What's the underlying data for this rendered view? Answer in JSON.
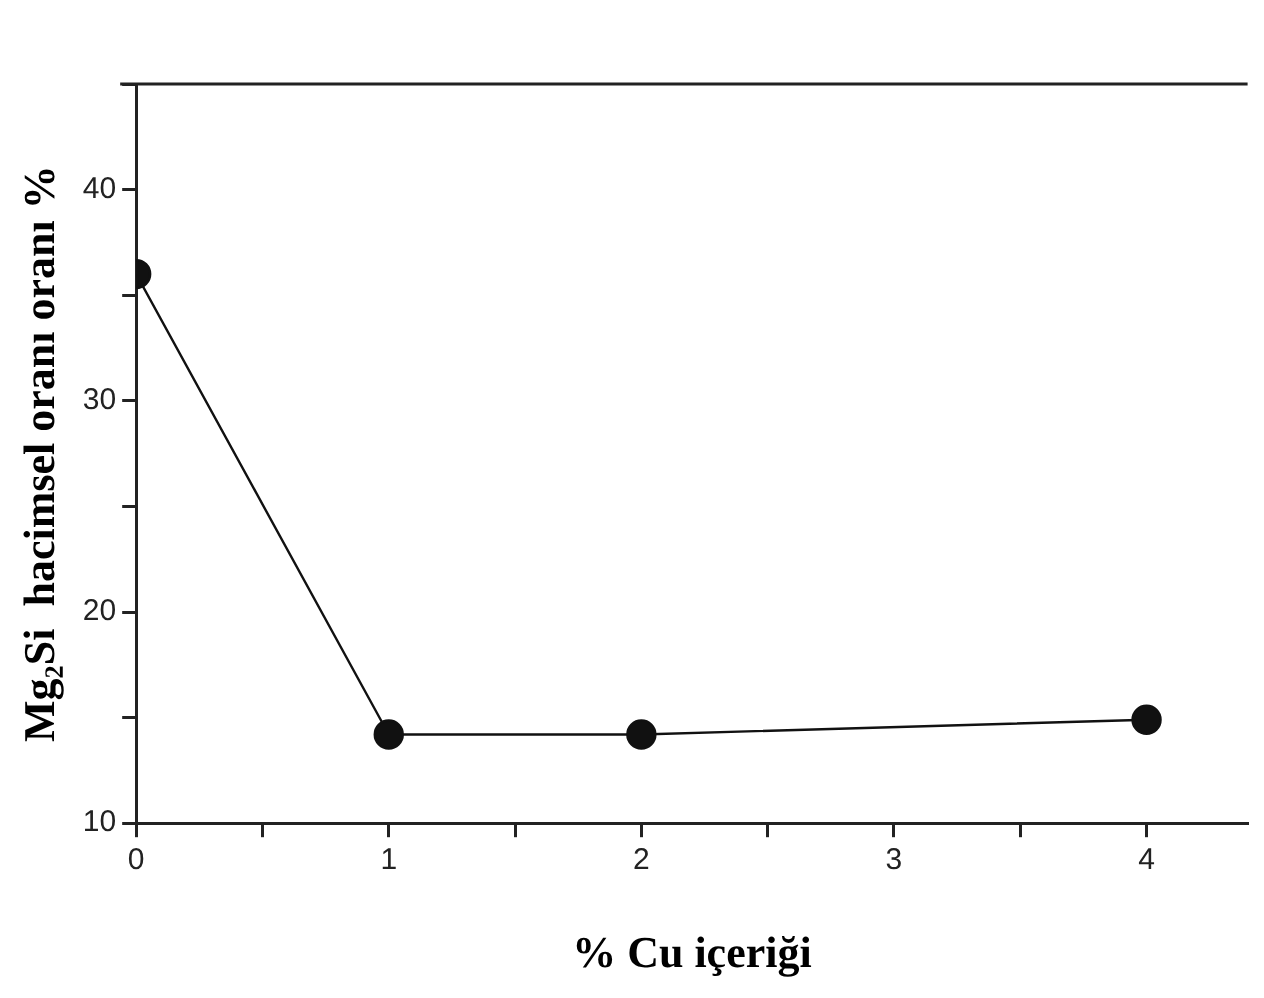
{
  "chart_data": {
    "type": "line",
    "xlabel": "% Cu içeriği",
    "ylabel": "Mg₂Si  hacimsel oranı oranı %",
    "x": [
      0,
      1,
      2,
      4
    ],
    "series": [
      {
        "color": "#111111",
        "values": [
          36,
          14.2,
          14.2,
          14.9
        ]
      }
    ],
    "marker": "circle",
    "line_style": "solid",
    "grid": false,
    "legend": false,
    "xlim": [
      0,
      4.4
    ],
    "xticks": [
      0,
      {
        "value": 0.5,
        "label": null
      },
      1,
      {
        "value": 1.5,
        "label": null
      },
      2,
      {
        "value": 2.5,
        "label": null
      },
      3,
      {
        "value": 3.5,
        "label": null
      },
      4
    ],
    "ylim": [
      10,
      45
    ],
    "yticks": [
      10,
      {
        "value": 15,
        "label": null
      },
      20,
      {
        "value": 25,
        "label": null
      },
      30,
      {
        "value": 35,
        "label": null
      },
      40,
      {
        "value": 45,
        "label": null
      }
    ]
  }
}
